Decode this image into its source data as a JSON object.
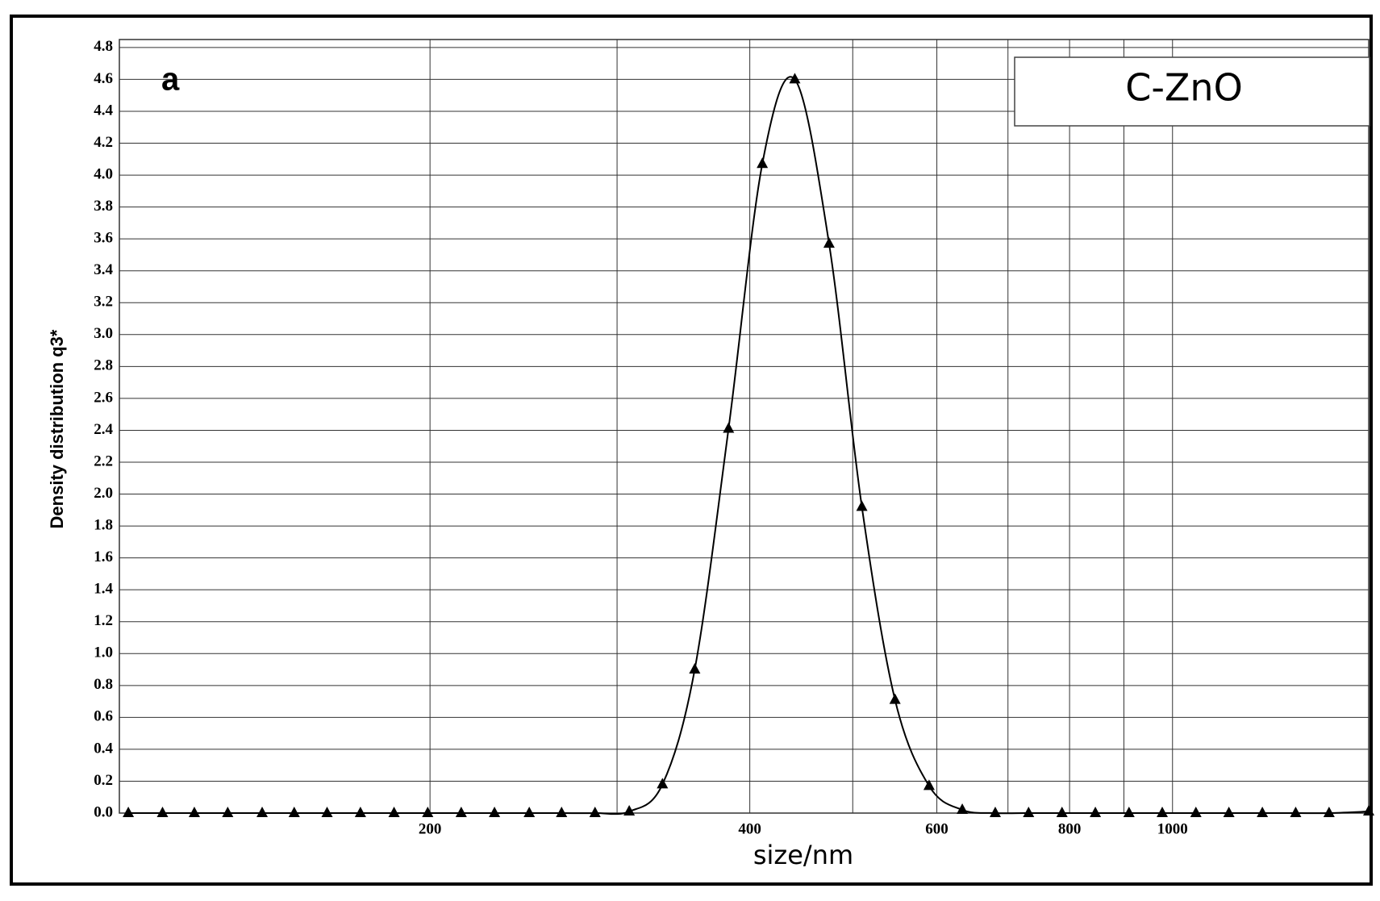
{
  "chart_data": {
    "type": "line",
    "panel_label": "a",
    "xlabel": "size/nm",
    "ylabel": "Density distribution q3*",
    "xscale": "log",
    "grid": true,
    "x": [
      104,
      112,
      120,
      129,
      139,
      149,
      160,
      172,
      185,
      199,
      214,
      230,
      248,
      266,
      286,
      308,
      331,
      355,
      382,
      411,
      441,
      475,
      510,
      548,
      590,
      634,
      681,
      732,
      787,
      846,
      910,
      978,
      1052,
      1130,
      1215,
      1306,
      1404,
      1530
    ],
    "series": [
      {
        "name": "C-ZnO",
        "color": "#000000",
        "marker": "triangle",
        "values": [
          0,
          0,
          0,
          0,
          0,
          0,
          0,
          0,
          0,
          0,
          0,
          0,
          0,
          0,
          0,
          0.01,
          0.18,
          0.9,
          2.41,
          4.07,
          4.6,
          3.57,
          1.92,
          0.71,
          0.17,
          0.02,
          0,
          0,
          0,
          0,
          0,
          0,
          0,
          0,
          0,
          0,
          0,
          0.01
        ]
      }
    ],
    "xlim": [
      102,
      1530
    ],
    "xticks": [
      200,
      400,
      600,
      800,
      1000
    ],
    "xgrid_minor": [
      300,
      500,
      700,
      900
    ],
    "ylim": [
      0,
      4.85
    ],
    "yticks": [
      {
        "value": 0,
        "label": "0.0"
      },
      0.2,
      0.4,
      0.6,
      0.8,
      {
        "value": 1,
        "label": "1.0"
      },
      1.2,
      1.4,
      1.6,
      1.8,
      {
        "value": 2,
        "label": "2.0"
      },
      2.2,
      2.4,
      2.6,
      2.8,
      {
        "value": 3,
        "label": "3.0"
      },
      3.2,
      3.4,
      3.6,
      3.8,
      {
        "value": 4,
        "label": "4.0"
      },
      4.2,
      4.4,
      4.6,
      4.8
    ]
  }
}
